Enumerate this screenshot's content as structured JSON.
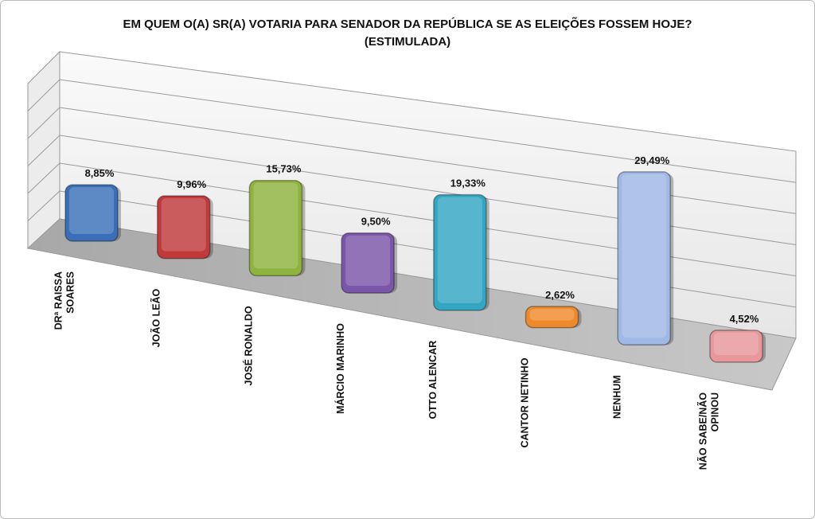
{
  "chart_data": {
    "type": "bar",
    "title": "EM QUEM O(A) SR(A) VOTARIA PARA SENADOR  DA REPÚBLICA SE AS ELEIÇÕES FOSSEM HOJE?",
    "subtitle": "(ESTIMULADA)",
    "categories": [
      [
        "DRª RAISSA",
        "SOARES"
      ],
      [
        "JOÃO LEÃO"
      ],
      [
        "JOSÉ RONALDO"
      ],
      [
        "MÁRCIO MARINHO"
      ],
      [
        "OTTO ALENCAR"
      ],
      [
        "CANTOR NETINHO"
      ],
      [
        "NENHUM"
      ],
      [
        "NÃO SABE/NÃO",
        "OPINOU"
      ]
    ],
    "values": [
      8.85,
      9.96,
      15.73,
      9.5,
      19.33,
      2.62,
      29.49,
      4.52
    ],
    "value_labels": [
      "8,85%",
      "9,96%",
      "15,73%",
      "9,50%",
      "19,33%",
      "2,62%",
      "29,49%",
      "4,52%"
    ],
    "colors": [
      "#3a6fb8",
      "#c0393b",
      "#8fb33d",
      "#7a55a8",
      "#33a6c2",
      "#ef8a2c",
      "#9fb8e6",
      "#e8979b"
    ],
    "xlabel": "",
    "ylabel": "",
    "ylim": [
      0,
      40
    ],
    "grid": true,
    "legend": "none"
  }
}
